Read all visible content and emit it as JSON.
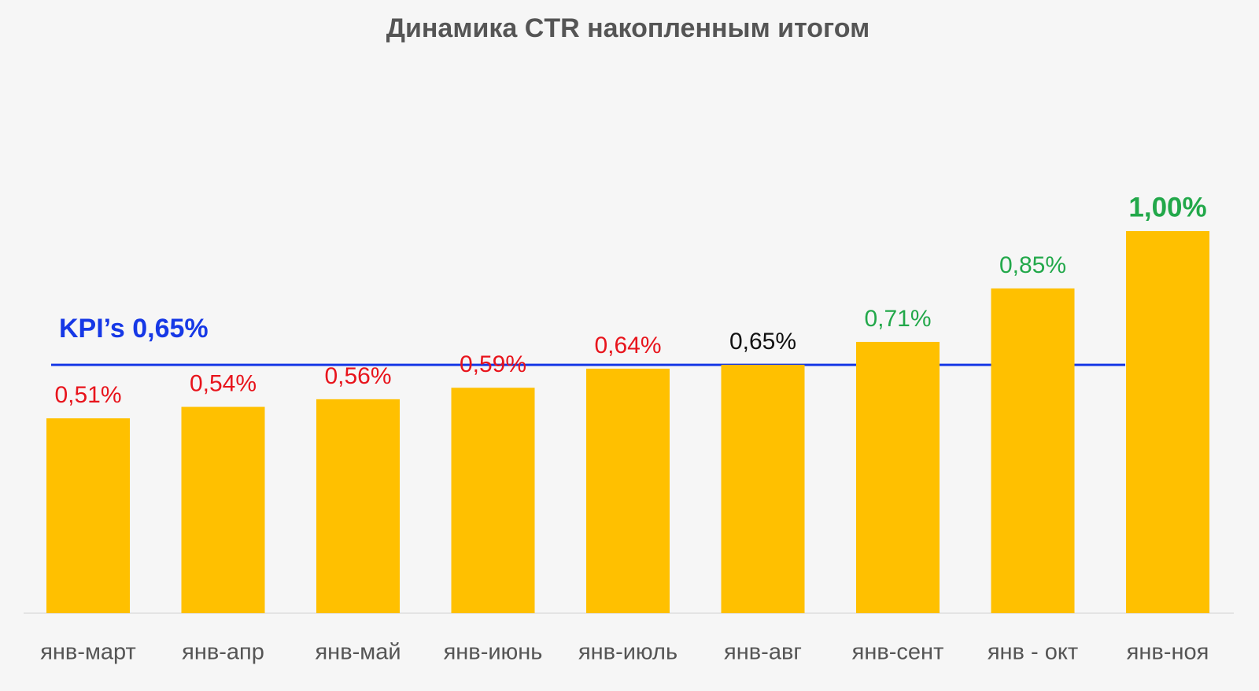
{
  "chart_data": {
    "type": "bar",
    "title": "Динамика CTR накопленным итогом",
    "categories": [
      "янв-март",
      "янв-апр",
      "янв-май",
      "янв-июнь",
      "янв-июль",
      "янв-авг",
      "янв-сент",
      "янв - окт",
      "янв-ноя"
    ],
    "values": [
      0.51,
      0.54,
      0.56,
      0.59,
      0.64,
      0.65,
      0.71,
      0.85,
      1.0
    ],
    "value_labels": [
      "0,51%",
      "0,54%",
      "0,56%",
      "0,59%",
      "0,64%",
      "0,65%",
      "0,71%",
      "0,85%",
      "1,00%"
    ],
    "label_colors": [
      "#e8141c",
      "#e8141c",
      "#e8141c",
      "#e8141c",
      "#e8141c",
      "#111111",
      "#22a84a",
      "#22a84a",
      "#22a84a"
    ],
    "color": "#ffc000",
    "kpi": {
      "value": 0.65,
      "label": "KPI’s 0,65%",
      "color": "#1638e6"
    }
  }
}
